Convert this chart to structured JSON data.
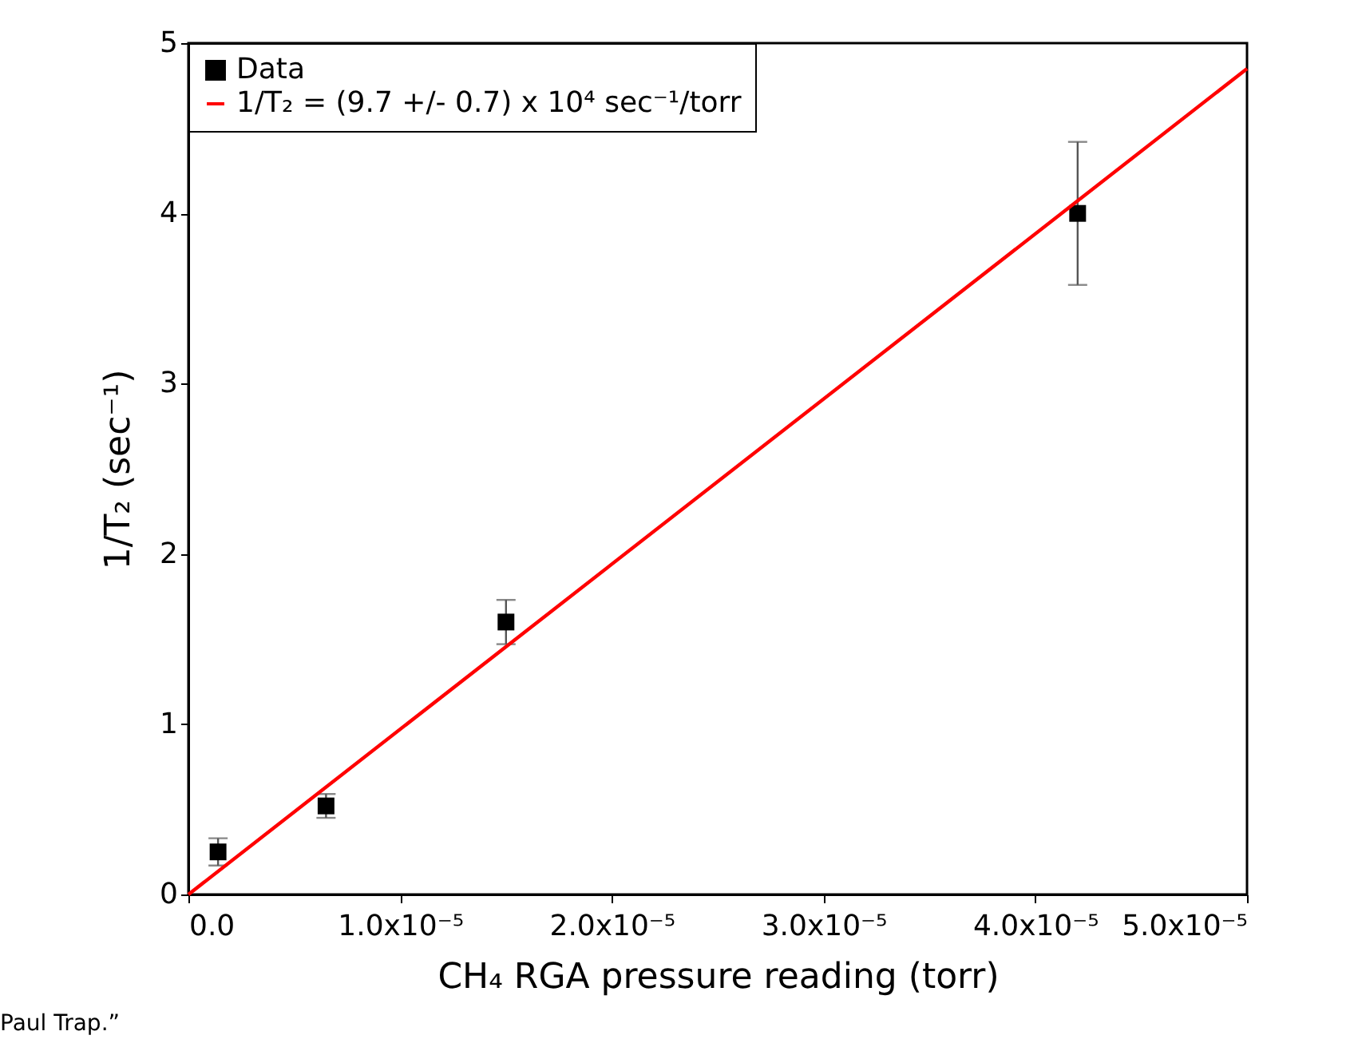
{
  "chart_data": {
    "type": "scatter",
    "xlabel": "CH₄ RGA pressure reading (torr)",
    "ylabel": "1/T₂ (sec⁻¹)",
    "series": [
      {
        "name": "Data",
        "color": "#000000",
        "marker": "square",
        "x": [
          1.4e-06,
          6.5e-06,
          1.5e-05,
          4.2e-05
        ],
        "values": [
          0.25,
          0.52,
          1.6,
          4.0
        ],
        "errors": [
          0.08,
          0.07,
          0.13,
          0.42
        ]
      },
      {
        "name": "1/T₂ = (9.7 +/- 0.7) x 10⁴ sec⁻¹/torr",
        "type": "line",
        "color": "#ff0000",
        "line_style": "solid",
        "x": [
          0,
          5e-05
        ],
        "values": [
          0,
          4.85
        ]
      }
    ],
    "xlim": [
      0,
      5e-05
    ],
    "xticks": [
      {
        "value": 0,
        "label": "0.0"
      },
      {
        "value": 1e-05,
        "label": "1.0x10⁻⁵"
      },
      {
        "value": 2e-05,
        "label": "2.0x10⁻⁵"
      },
      {
        "value": 3e-05,
        "label": "3.0x10⁻⁵"
      },
      {
        "value": 4e-05,
        "label": "4.0x10⁻⁵"
      },
      {
        "value": 5e-05,
        "label": "5.0x10⁻⁵"
      }
    ],
    "ylim": [
      0,
      5
    ],
    "yticks": [
      0,
      1,
      2,
      3,
      4,
      5
    ],
    "grid": false,
    "legend": "top left",
    "annotations": [
      "Paul Trap.”"
    ]
  }
}
